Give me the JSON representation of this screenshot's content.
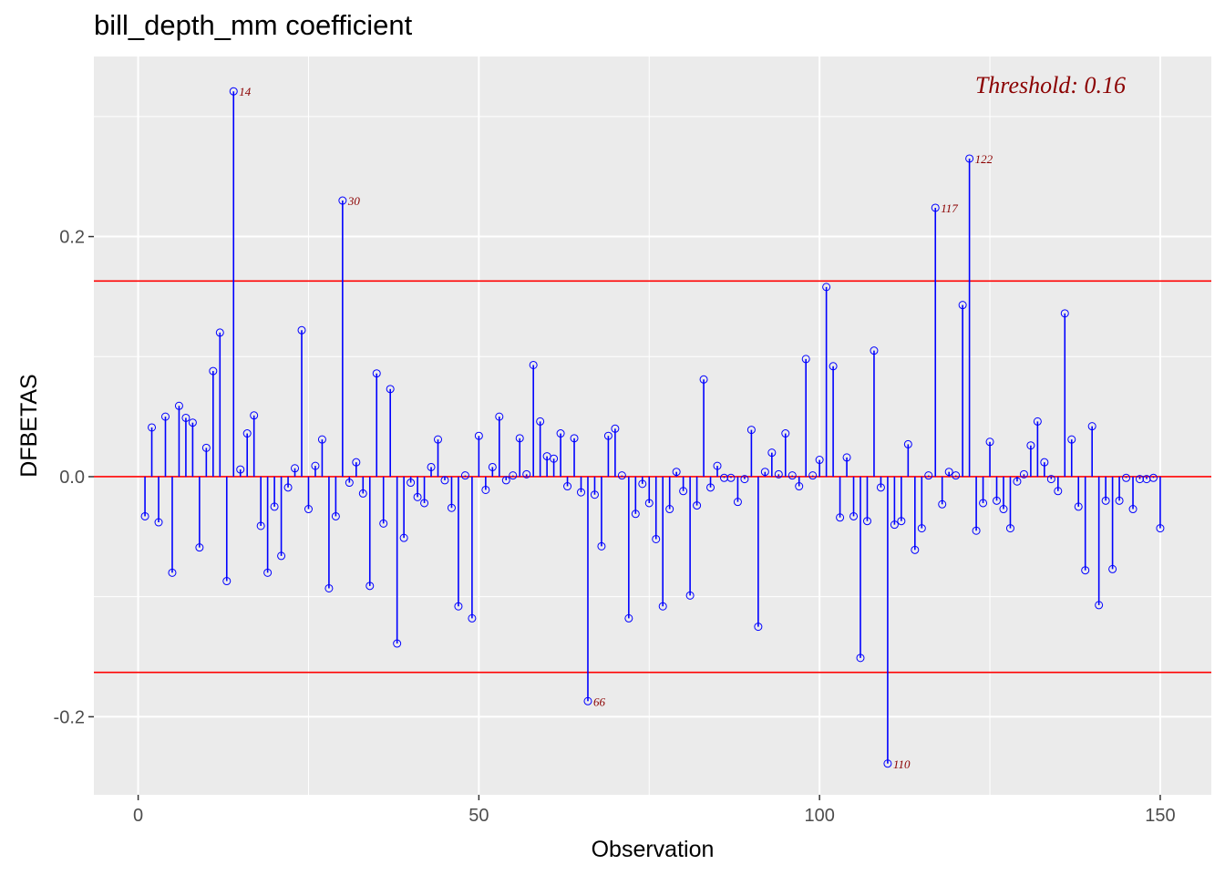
{
  "chart_data": {
    "type": "lollipop",
    "title": "bill_depth_mm coefficient",
    "xlabel": "Observation",
    "ylabel": "DFBETAS",
    "xlim": [
      -6.5,
      157.5
    ],
    "ylim": [
      -0.265,
      0.35
    ],
    "x_ticks": [
      0,
      50,
      100,
      150
    ],
    "y_ticks": [
      -0.2,
      0.0,
      0.2
    ],
    "y_tick_labels": [
      "-0.2",
      "0.0",
      "0.2"
    ],
    "threshold": 0.163,
    "threshold_label": "Threshold: 0.16",
    "colors": {
      "panel": "#ebebeb",
      "grid": "#ffffff",
      "stem": "#0000ff",
      "threshold_line": "#ff0000",
      "label": "#8b0000"
    },
    "observations": [
      1,
      2,
      3,
      4,
      5,
      6,
      7,
      8,
      9,
      10,
      11,
      12,
      13,
      14,
      15,
      16,
      17,
      18,
      19,
      20,
      21,
      22,
      23,
      24,
      25,
      26,
      27,
      28,
      29,
      30,
      31,
      32,
      33,
      34,
      35,
      36,
      37,
      38,
      39,
      40,
      41,
      42,
      43,
      44,
      45,
      46,
      47,
      48,
      49,
      50,
      51,
      52,
      53,
      54,
      55,
      56,
      57,
      58,
      59,
      60,
      61,
      62,
      63,
      64,
      65,
      66,
      67,
      68,
      69,
      70,
      71,
      72,
      73,
      74,
      75,
      76,
      77,
      78,
      79,
      80,
      81,
      82,
      83,
      84,
      85,
      86,
      87,
      88,
      89,
      90,
      91,
      92,
      93,
      94,
      95,
      96,
      97,
      98,
      99,
      100,
      101,
      102,
      103,
      104,
      105,
      106,
      107,
      108,
      109,
      110,
      111,
      112,
      113,
      114,
      115,
      116,
      117,
      118,
      119,
      120,
      121,
      122,
      123,
      124,
      125,
      126,
      127,
      128,
      129,
      130,
      131,
      132,
      133,
      134,
      135,
      136,
      137,
      138,
      139,
      140,
      141,
      142,
      143,
      144,
      145,
      146,
      147,
      148,
      149,
      150
    ],
    "values": [
      -0.033,
      0.041,
      -0.038,
      0.05,
      -0.08,
      0.059,
      0.049,
      0.045,
      -0.059,
      0.024,
      0.088,
      0.12,
      -0.087,
      0.321,
      0.006,
      0.036,
      0.051,
      -0.041,
      -0.08,
      -0.025,
      -0.066,
      -0.009,
      0.007,
      0.122,
      -0.027,
      0.009,
      0.031,
      -0.093,
      -0.033,
      0.23,
      -0.005,
      0.012,
      -0.014,
      -0.091,
      0.086,
      -0.039,
      0.073,
      -0.139,
      -0.051,
      -0.005,
      -0.017,
      -0.022,
      0.008,
      0.031,
      -0.003,
      -0.026,
      -0.108,
      0.001,
      -0.118,
      0.034,
      -0.011,
      0.008,
      0.05,
      -0.003,
      0.001,
      0.032,
      0.002,
      0.093,
      0.046,
      0.017,
      0.015,
      0.036,
      -0.008,
      0.032,
      -0.013,
      -0.187,
      -0.015,
      -0.058,
      0.034,
      0.04,
      0.001,
      -0.118,
      -0.031,
      -0.006,
      -0.022,
      -0.052,
      -0.108,
      -0.027,
      0.004,
      -0.012,
      -0.099,
      -0.024,
      0.081,
      -0.009,
      0.009,
      -0.001,
      -0.001,
      -0.021,
      -0.002,
      0.039,
      -0.125,
      0.004,
      0.02,
      0.002,
      0.036,
      0.001,
      -0.008,
      0.098,
      0.001,
      0.014,
      0.158,
      0.092,
      -0.034,
      0.016,
      -0.033,
      -0.151,
      -0.037,
      0.105,
      -0.009,
      -0.239,
      -0.04,
      -0.037,
      0.027,
      -0.061,
      -0.043,
      0.001,
      0.224,
      -0.023,
      0.004,
      0.001,
      0.143,
      0.265,
      -0.045,
      -0.022,
      0.029,
      -0.02,
      -0.027,
      -0.043,
      -0.004,
      0.002,
      0.026,
      0.046,
      0.012,
      -0.002,
      -0.012,
      0.136,
      0.031,
      -0.025,
      -0.078,
      0.042,
      -0.107,
      -0.02,
      -0.077,
      -0.02,
      -0.001,
      -0.027,
      -0.002,
      -0.002,
      -0.001,
      -0.043
    ],
    "labeled_points": [
      {
        "x": 14,
        "label": "14"
      },
      {
        "x": 30,
        "label": "30"
      },
      {
        "x": 66,
        "label": "66"
      },
      {
        "x": 110,
        "label": "110"
      },
      {
        "x": 117,
        "label": "117"
      },
      {
        "x": 122,
        "label": "122"
      }
    ]
  }
}
